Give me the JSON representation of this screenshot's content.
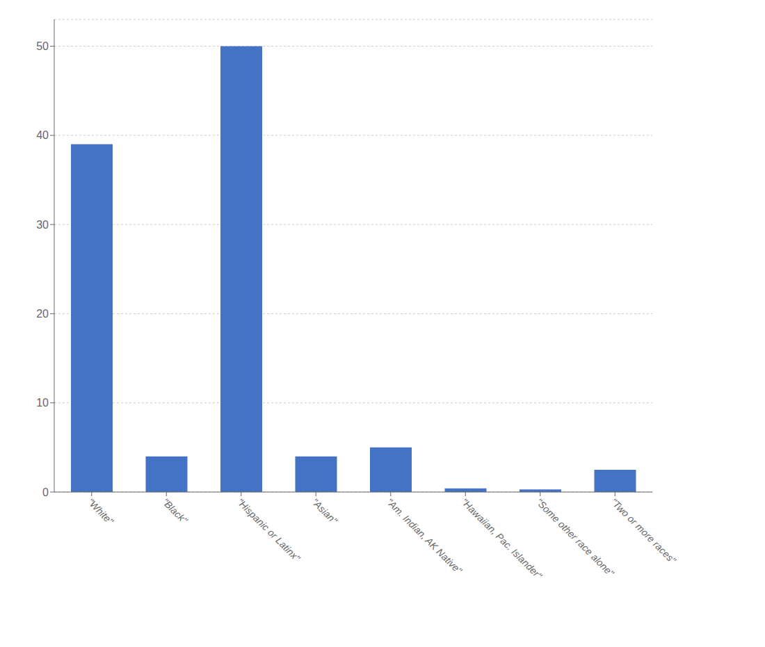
{
  "chart_data": {
    "type": "bar",
    "categories": [
      "\"White\"",
      "\"Black\"",
      "\"Hispanic or Latinx\"",
      "\"Asian\"",
      "\"Am. Indian, AK Native\"",
      "\"Hawaiian, Pac. Islander\"",
      "\"Some other race alone\"",
      "\"Two or more races\""
    ],
    "values": [
      39,
      4,
      50,
      4,
      5,
      0.4,
      0.3,
      2.5
    ],
    "color": "#4472C4",
    "ylim": [
      0,
      53
    ],
    "yticks": [
      0,
      10,
      20,
      30,
      40,
      50
    ],
    "grid": true
  }
}
